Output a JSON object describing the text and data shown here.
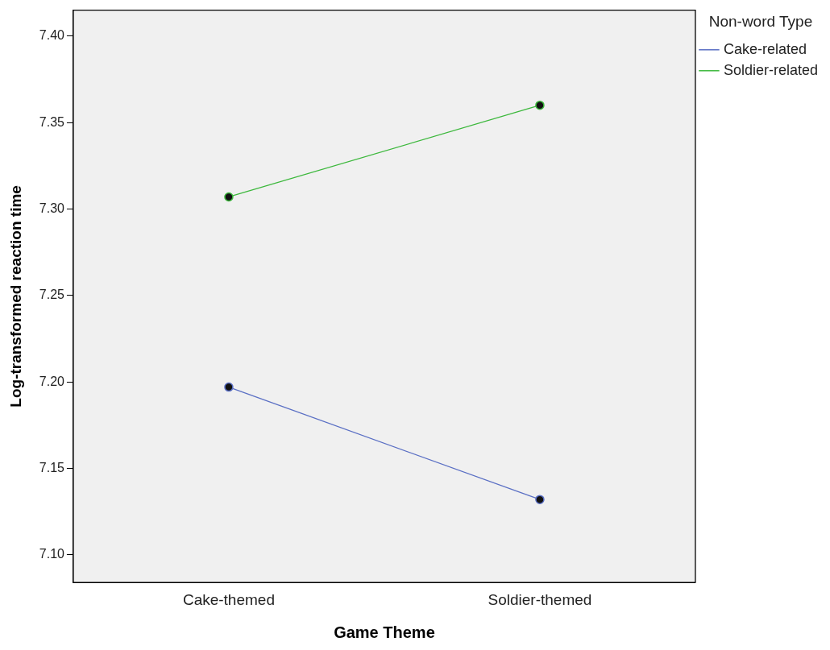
{
  "chart_data": {
    "type": "line",
    "xlabel": "Game Theme",
    "ylabel": "Log-transformed reaction time",
    "legend_title": "Non-word Type",
    "categories": [
      "Cake-themed",
      "Soldier-themed"
    ],
    "series": [
      {
        "name": "Cake-related",
        "color": "#5a6fc4",
        "values": [
          7.197,
          7.132
        ]
      },
      {
        "name": "Soldier-related",
        "color": "#3cb83c",
        "values": [
          7.307,
          7.36
        ]
      }
    ],
    "ylim": [
      7.084,
      7.415
    ],
    "yticks": [
      {
        "value": 7.1,
        "label": "7.10"
      },
      {
        "value": 7.15,
        "label": "7.15"
      },
      {
        "value": 7.2,
        "label": "7.20"
      },
      {
        "value": 7.25,
        "label": "7.25"
      },
      {
        "value": 7.3,
        "label": "7.30"
      },
      {
        "value": 7.35,
        "label": "7.35"
      },
      {
        "value": 7.4,
        "label": "7.40"
      }
    ],
    "grid": false,
    "legend": "top right",
    "marker": "circle",
    "line_style": "solid"
  }
}
